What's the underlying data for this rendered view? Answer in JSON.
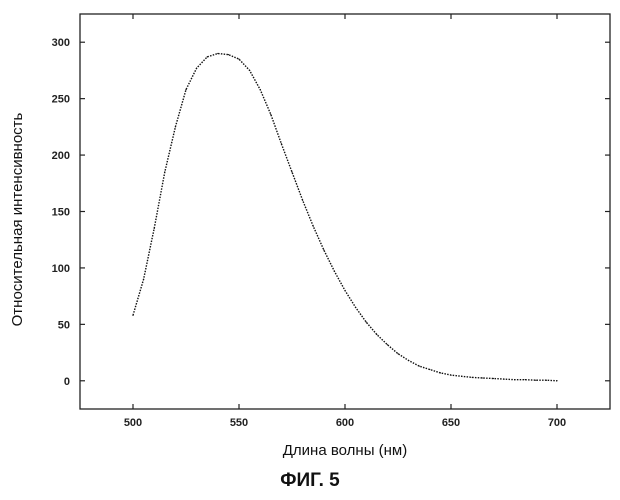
{
  "figure_caption": "ФИГ. 5",
  "chart_data": {
    "type": "line",
    "title": "",
    "xlabel": "Длина волны (нм)",
    "ylabel": "Относительная интенсивность",
    "xlim": [
      475,
      725
    ],
    "ylim": [
      -25,
      325
    ],
    "xticks": [
      500,
      550,
      600,
      650,
      700
    ],
    "yticks": [
      0,
      50,
      100,
      150,
      200,
      250,
      300
    ],
    "grid": false,
    "line_style": "dotted",
    "series": [
      {
        "x": [
          500,
          505,
          510,
          515,
          520,
          525,
          530,
          535,
          540,
          545,
          550,
          555,
          560,
          565,
          570,
          575,
          580,
          585,
          590,
          595,
          600,
          605,
          610,
          615,
          620,
          625,
          630,
          635,
          640,
          645,
          650,
          655,
          660,
          665,
          670,
          675,
          680,
          685,
          690,
          695,
          700
        ],
        "y": [
          58,
          90,
          135,
          185,
          225,
          258,
          277,
          287,
          290,
          289,
          285,
          275,
          258,
          236,
          210,
          185,
          160,
          137,
          116,
          97,
          80,
          65,
          52,
          41,
          32,
          24,
          18,
          13,
          10,
          7,
          5,
          4,
          3,
          2.5,
          2,
          1.5,
          1,
          1,
          0.5,
          0.5,
          0
        ]
      }
    ]
  }
}
